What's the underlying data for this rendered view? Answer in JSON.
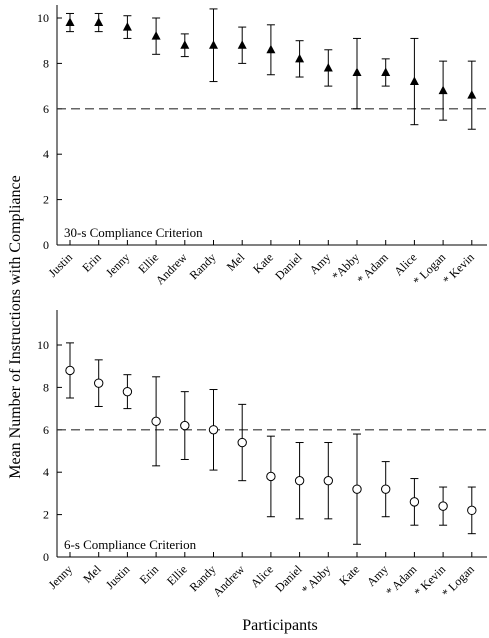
{
  "figure": {
    "ylabel": "Mean Number of Instructions with Compliance",
    "xlabel": "Participants"
  },
  "chart_data": [
    {
      "type": "scatter",
      "name": "panel-30s",
      "title": "30-s Compliance Criterion",
      "marker": "filled-triangle",
      "reference_line": 6,
      "ylim": [
        0,
        10.8
      ],
      "yticks": [
        0,
        2,
        4,
        6,
        8,
        10
      ],
      "categories": [
        "Justin",
        "Erin",
        "Jenny",
        "Ellie",
        "Andrew",
        "Randy",
        "Mel",
        "Kate",
        "Daniel",
        "Amy",
        "*Abby",
        "* Adam",
        "Alice",
        "* Logan",
        "* Kevin"
      ],
      "values": [
        9.8,
        9.8,
        9.6,
        9.2,
        8.8,
        8.8,
        8.8,
        8.6,
        8.2,
        7.8,
        7.6,
        7.6,
        7.2,
        6.8,
        6.6
      ],
      "err_low": [
        9.4,
        9.4,
        9.1,
        8.4,
        8.3,
        7.2,
        8.0,
        7.5,
        7.4,
        7.0,
        6.0,
        7.0,
        5.3,
        5.5,
        5.1
      ],
      "err_high": [
        10.2,
        10.2,
        10.1,
        10.0,
        9.3,
        10.4,
        9.6,
        9.7,
        9.0,
        8.6,
        9.1,
        8.2,
        9.1,
        8.1,
        8.1
      ]
    },
    {
      "type": "scatter",
      "name": "panel-6s",
      "title": "6-s Compliance Criterion",
      "marker": "open-circle",
      "reference_line": 6,
      "ylim": [
        0,
        10.8
      ],
      "yticks": [
        0,
        2,
        4,
        6,
        8,
        10
      ],
      "categories": [
        "Jenny",
        "Mel",
        "Justin",
        "Erin",
        "Ellie",
        "Randy",
        "Andrew",
        "Alice",
        "Daniel",
        "* Abby",
        "Kate",
        "Amy",
        "* Adam",
        "* Kevin",
        "* Logan"
      ],
      "values": [
        8.8,
        8.2,
        7.8,
        6.4,
        6.2,
        6.0,
        5.4,
        3.8,
        3.6,
        3.6,
        3.2,
        3.2,
        2.6,
        2.4,
        2.2
      ],
      "err_low": [
        7.5,
        7.1,
        7.0,
        4.3,
        4.6,
        4.1,
        3.6,
        1.9,
        1.8,
        1.8,
        0.6,
        1.9,
        1.5,
        1.5,
        1.1
      ],
      "err_high": [
        10.1,
        9.3,
        8.6,
        8.5,
        7.8,
        7.9,
        7.2,
        5.7,
        5.4,
        5.4,
        5.8,
        4.5,
        3.7,
        3.3,
        3.3
      ]
    }
  ]
}
